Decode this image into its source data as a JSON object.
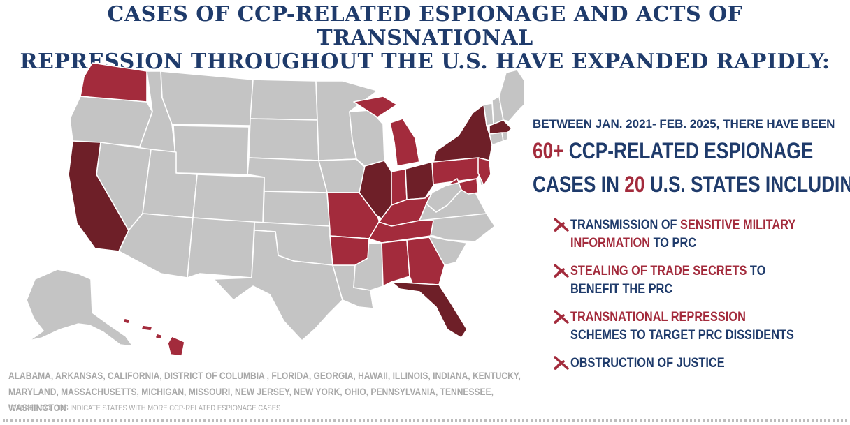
{
  "title": {
    "line1": "CASES OF CCP-RELATED ESPIONAGE AND ACTS OF TRANSNATIONAL",
    "line2": "REPRESSION THROUGHOUT THE U.S. HAVE EXPANDED RAPIDLY:"
  },
  "stats": {
    "intro": "BETWEEN JAN. 2021- FEB. 2025, THERE HAVE BEEN",
    "count": "60+",
    "count_suffix": "CCP-RELATED ESPIONAGE",
    "line2_prefix": "CASES IN",
    "states_count": "20",
    "line2_suffix": "U.S. STATES INCLUDING:"
  },
  "bullets": [
    {
      "pre": "TRANSMISSION OF ",
      "hl": "SENSITIVE MILITARY INFORMATION",
      "post": " TO PRC"
    },
    {
      "pre": "",
      "hl": "STEALING OF TRADE SECRETS",
      "post": " TO BENEFIT THE PRC"
    },
    {
      "pre": "",
      "hl": "TRANSNATIONAL REPRESSION",
      "post": " SCHEMES TO TARGET PRC DISSIDENTS"
    },
    {
      "pre": "",
      "hl": "",
      "post": "OBSTRUCTION OF JUSTICE"
    }
  ],
  "states_list": "ALABAMA, ARKANSAS, CALIFORNIA, DISTRICT OF COLUMBIA , FLORIDA, GEORGIA, HAWAII, ILLINOIS, INDIANA, KENTUCKY, MARYLAND, MASSACHUSETTS, MICHIGAN, MISSOURI, NEW JERSEY, NEW YORK, OHIO, PENNSYLVANIA, TENNESSEE, WASHINGTON",
  "footnote": "*DARKER COLORS INDICATE STATES WITH MORE CCP-RELATED ESPIONAGE CASES",
  "colors": {
    "navy": "#1f3b6b",
    "red": "#a32b3c",
    "dark_red": "#6e1f28",
    "gray": "#c4c4c4"
  },
  "map_states": [
    {
      "id": "washington",
      "level": "medium"
    },
    {
      "id": "california",
      "level": "dark"
    },
    {
      "id": "missouri",
      "level": "medium"
    },
    {
      "id": "illinois",
      "level": "dark"
    },
    {
      "id": "indiana",
      "level": "medium"
    },
    {
      "id": "michigan",
      "level": "medium"
    },
    {
      "id": "ohio",
      "level": "dark"
    },
    {
      "id": "kentucky",
      "level": "medium"
    },
    {
      "id": "tennessee",
      "level": "medium"
    },
    {
      "id": "arkansas",
      "level": "medium"
    },
    {
      "id": "alabama",
      "level": "medium"
    },
    {
      "id": "georgia",
      "level": "medium"
    },
    {
      "id": "florida",
      "level": "dark"
    },
    {
      "id": "pennsylvania",
      "level": "medium"
    },
    {
      "id": "new-york",
      "level": "dark"
    },
    {
      "id": "new-jersey",
      "level": "medium"
    },
    {
      "id": "maryland",
      "level": "medium"
    },
    {
      "id": "massachusetts",
      "level": "dark"
    },
    {
      "id": "hawaii",
      "level": "medium"
    }
  ]
}
